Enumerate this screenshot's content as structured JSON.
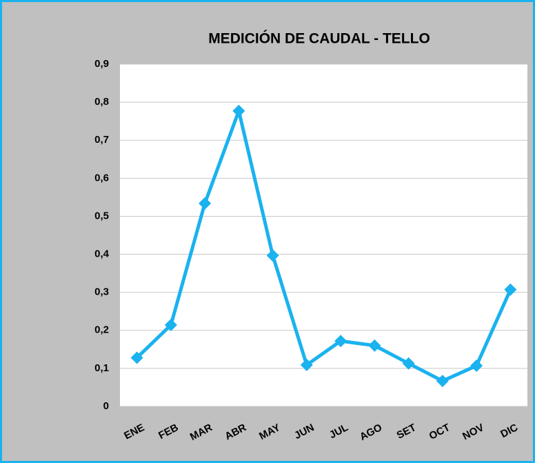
{
  "chart_data": {
    "type": "line",
    "title": "MEDICIÓN DE CAUDAL - TELLO",
    "categories": [
      "ENE",
      "FEB",
      "MAR",
      "ABR",
      "MAY",
      "JUN",
      "JUL",
      "AGO",
      "SET",
      "OCT",
      "NOV",
      "DIC"
    ],
    "series": [
      {
        "name": "TELLO",
        "color": "#1ab2ef",
        "values": [
          0.128,
          0.214,
          0.534,
          0.777,
          0.397,
          0.109,
          0.172,
          0.16,
          0.113,
          0.067,
          0.107,
          0.307
        ]
      }
    ],
    "ylim": [
      0,
      0.9
    ],
    "yticks": [
      0,
      {
        "value": 0.1,
        "label": "0,1"
      },
      {
        "value": 0.2,
        "label": "0,2"
      },
      {
        "value": 0.3,
        "label": "0,3"
      },
      {
        "value": 0.4,
        "label": "0,4"
      },
      {
        "value": 0.5,
        "label": "0,5"
      },
      {
        "value": 0.6,
        "label": "0,6"
      },
      {
        "value": 0.7,
        "label": "0,7"
      },
      {
        "value": 0.8,
        "label": "0,8"
      },
      {
        "value": 0.9,
        "label": "0,9"
      }
    ],
    "grid": true
  }
}
